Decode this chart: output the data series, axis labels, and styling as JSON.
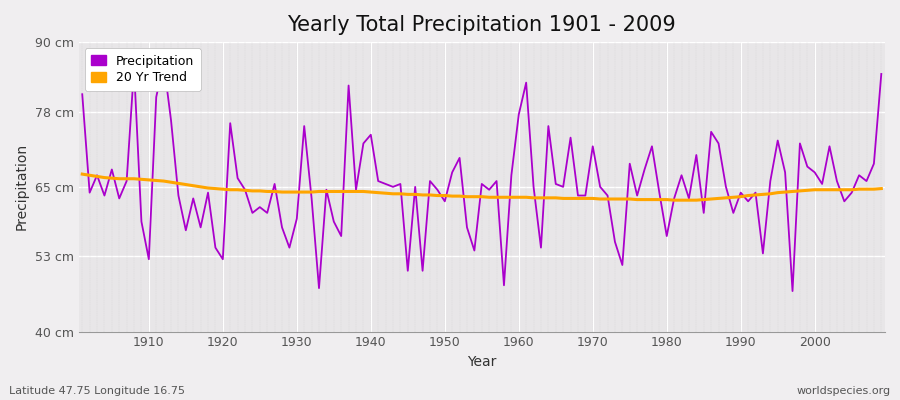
{
  "title": "Yearly Total Precipitation 1901 - 2009",
  "xlabel": "Year",
  "ylabel": "Precipitation",
  "subtitle": "Latitude 47.75 Longitude 16.75",
  "watermark": "worldspecies.org",
  "years": [
    1901,
    1902,
    1903,
    1904,
    1905,
    1906,
    1907,
    1908,
    1909,
    1910,
    1911,
    1912,
    1913,
    1914,
    1915,
    1916,
    1917,
    1918,
    1919,
    1920,
    1921,
    1922,
    1923,
    1924,
    1925,
    1926,
    1927,
    1928,
    1929,
    1930,
    1931,
    1932,
    1933,
    1934,
    1935,
    1936,
    1937,
    1938,
    1939,
    1940,
    1941,
    1942,
    1943,
    1944,
    1945,
    1946,
    1947,
    1948,
    1949,
    1950,
    1951,
    1952,
    1953,
    1954,
    1955,
    1956,
    1957,
    1958,
    1959,
    1960,
    1961,
    1962,
    1963,
    1964,
    1965,
    1966,
    1967,
    1968,
    1969,
    1970,
    1971,
    1972,
    1973,
    1974,
    1975,
    1976,
    1977,
    1978,
    1979,
    1980,
    1981,
    1982,
    1983,
    1984,
    1985,
    1986,
    1987,
    1988,
    1989,
    1990,
    1991,
    1992,
    1993,
    1994,
    1995,
    1996,
    1997,
    1998,
    1999,
    2000,
    2001,
    2002,
    2003,
    2004,
    2005,
    2006,
    2007,
    2008,
    2009
  ],
  "precip": [
    81.0,
    64.0,
    67.0,
    63.5,
    68.0,
    63.0,
    66.0,
    85.5,
    59.0,
    52.5,
    80.5,
    86.5,
    76.5,
    63.5,
    57.5,
    63.0,
    58.0,
    64.0,
    54.5,
    52.5,
    76.0,
    66.5,
    64.5,
    60.5,
    61.5,
    60.5,
    65.5,
    58.0,
    54.5,
    59.5,
    75.5,
    63.0,
    47.5,
    64.5,
    59.0,
    56.5,
    82.5,
    64.5,
    72.5,
    74.0,
    66.0,
    65.5,
    65.0,
    65.5,
    50.5,
    65.0,
    50.5,
    66.0,
    64.5,
    62.5,
    67.5,
    70.0,
    58.0,
    54.0,
    65.5,
    64.5,
    66.0,
    48.0,
    67.0,
    77.5,
    83.0,
    65.0,
    54.5,
    75.5,
    65.5,
    65.0,
    73.5,
    63.5,
    63.5,
    72.0,
    65.0,
    63.5,
    55.5,
    51.5,
    69.0,
    63.5,
    68.0,
    72.0,
    64.0,
    56.5,
    63.0,
    67.0,
    63.0,
    70.5,
    60.5,
    74.5,
    72.5,
    65.0,
    60.5,
    64.0,
    62.5,
    64.0,
    53.5,
    66.0,
    73.0,
    67.5,
    47.0,
    72.5,
    68.5,
    67.5,
    65.5,
    72.0,
    66.0,
    62.5,
    64.0,
    67.0,
    66.0,
    69.0,
    84.5
  ],
  "trend": [
    67.2,
    67.0,
    66.8,
    66.6,
    66.5,
    66.4,
    66.4,
    66.4,
    66.3,
    66.2,
    66.1,
    66.0,
    65.8,
    65.6,
    65.4,
    65.2,
    65.0,
    64.8,
    64.7,
    64.6,
    64.5,
    64.5,
    64.4,
    64.3,
    64.3,
    64.2,
    64.2,
    64.1,
    64.1,
    64.1,
    64.1,
    64.1,
    64.2,
    64.2,
    64.2,
    64.2,
    64.2,
    64.2,
    64.2,
    64.1,
    64.0,
    63.9,
    63.8,
    63.8,
    63.7,
    63.7,
    63.6,
    63.6,
    63.5,
    63.5,
    63.4,
    63.4,
    63.3,
    63.3,
    63.3,
    63.2,
    63.2,
    63.2,
    63.2,
    63.2,
    63.2,
    63.1,
    63.1,
    63.1,
    63.1,
    63.0,
    63.0,
    63.0,
    63.0,
    63.0,
    62.9,
    62.9,
    62.9,
    62.9,
    62.9,
    62.8,
    62.8,
    62.8,
    62.8,
    62.8,
    62.7,
    62.7,
    62.7,
    62.7,
    62.8,
    62.9,
    63.0,
    63.1,
    63.2,
    63.3,
    63.5,
    63.6,
    63.7,
    63.8,
    64.0,
    64.1,
    64.2,
    64.3,
    64.4,
    64.5,
    64.5,
    64.5,
    64.5,
    64.5,
    64.5,
    64.6,
    64.6,
    64.6,
    64.7
  ],
  "precip_color": "#AA00CC",
  "trend_color": "#FFA500",
  "fig_bg_color": "#F0EEF0",
  "plot_bg_color": "#E8E6E8",
  "grid_color_h": "#FFFFFF",
  "grid_color_v": "#CCCCCC",
  "ylim": [
    40,
    90
  ],
  "xlim_min": 1901,
  "xlim_max": 2009,
  "yticks": [
    40,
    53,
    65,
    78,
    90
  ],
  "ytick_labels": [
    "40 cm",
    "53 cm",
    "65 cm",
    "78 cm",
    "90 cm"
  ],
  "xticks": [
    1910,
    1920,
    1930,
    1940,
    1950,
    1960,
    1970,
    1980,
    1990,
    2000
  ],
  "title_fontsize": 15,
  "label_fontsize": 10,
  "tick_fontsize": 9,
  "legend_precip": "Precipitation",
  "legend_trend": "20 Yr Trend"
}
